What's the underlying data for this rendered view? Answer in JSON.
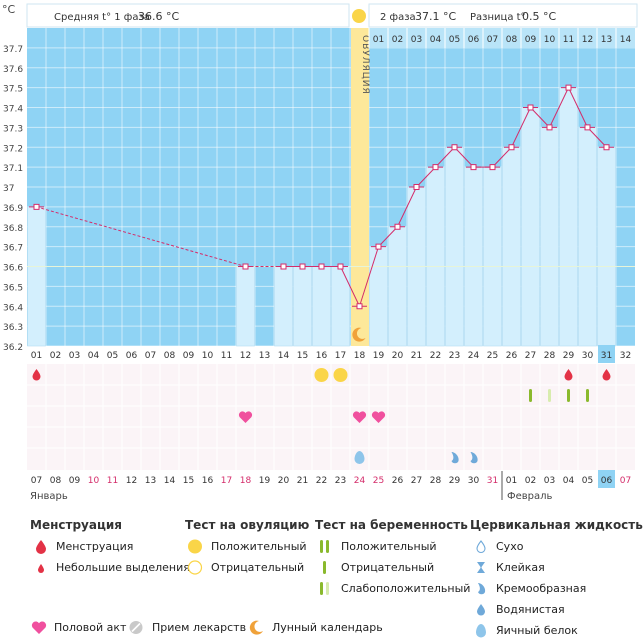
{
  "header": {
    "unit": "°C",
    "phase1_label": "Средняя t° 1 фаза",
    "phase1_value": "36.6 °C",
    "phase2_label": "2 фаза",
    "phase2_value": "37.1 °C",
    "diff_label": "Разница t°",
    "diff_value": "0.5 °C"
  },
  "ovulation_label": "ОВУЛЯЦИЯ",
  "phase2_days": [
    "01",
    "02",
    "03",
    "04",
    "05",
    "06",
    "07",
    "08",
    "09",
    "10",
    "11",
    "12",
    "13",
    "14"
  ],
  "months": {
    "first": "Январь",
    "second": "Февраль"
  },
  "colors": {
    "chart_bg": "#8fd3f4",
    "bar_fill": "#d3effd",
    "bar_stroke": "#b5ddf2",
    "line": "#d42c6a",
    "ovulation": "#fde89a",
    "sun": "#fad548",
    "grid": "#ffffff",
    "marks_bg": "#fbf4f7",
    "red_date": "#d42c6a",
    "highlight": "#8fd3f4"
  },
  "chart_data": {
    "type": "line",
    "y_unit": "°C",
    "ylim": [
      36.2,
      37.8
    ],
    "y_ticks": [
      "36.2",
      "36.3",
      "36.4",
      "36.5",
      "36.6",
      "36.7",
      "36.8",
      "36.9",
      "37",
      "37.1",
      "37.2",
      "37.3",
      "37.4",
      "37.5",
      "37.6",
      "37.7"
    ],
    "cycle_days": [
      "01",
      "02",
      "03",
      "04",
      "05",
      "06",
      "07",
      "08",
      "09",
      "10",
      "11",
      "12",
      "13",
      "14",
      "15",
      "16",
      "17",
      "18",
      "19",
      "20",
      "21",
      "22",
      "23",
      "24",
      "25",
      "26",
      "27",
      "28",
      "29",
      "30",
      "31",
      "32"
    ],
    "dates": [
      "07",
      "08",
      "09",
      "10",
      "11",
      "12",
      "13",
      "14",
      "15",
      "16",
      "17",
      "18",
      "19",
      "20",
      "21",
      "22",
      "23",
      "24",
      "25",
      "26",
      "27",
      "28",
      "29",
      "30",
      "31",
      "01",
      "02",
      "03",
      "04",
      "05",
      "06",
      "07"
    ],
    "red_date_indices": [
      3,
      4,
      10,
      11,
      17,
      18,
      24,
      31
    ],
    "highlighted_index": 30,
    "month_split_index": 25,
    "ovulation_day_index": 17,
    "coverline": 36.6,
    "temps": [
      36.9,
      null,
      null,
      null,
      null,
      null,
      null,
      null,
      null,
      null,
      null,
      36.6,
      null,
      36.6,
      36.6,
      36.6,
      36.6,
      36.4,
      36.7,
      36.8,
      37.0,
      37.1,
      37.2,
      37.1,
      37.1,
      37.2,
      37.4,
      37.3,
      37.5,
      37.3,
      37.2,
      null
    ],
    "markers": {
      "menstruation": [
        {
          "day": 0,
          "size": "large"
        },
        {
          "day": 28,
          "size": "large"
        },
        {
          "day": 30,
          "size": "large"
        }
      ],
      "ovulation_test_positive": [
        15,
        16
      ],
      "pregnancy_test": [
        {
          "day": 26,
          "kind": "positive"
        },
        {
          "day": 27,
          "kind": "weak"
        },
        {
          "day": 28,
          "kind": "positive"
        },
        {
          "day": 29,
          "kind": "negative"
        }
      ],
      "intercourse": [
        11,
        17,
        18
      ],
      "cervical_fluid": [
        {
          "day": 17,
          "kind": "egg-white"
        },
        {
          "day": 22,
          "kind": "watery"
        },
        {
          "day": 23,
          "kind": "watery"
        }
      ],
      "moon": [
        17
      ]
    }
  },
  "legend": {
    "menstruation": {
      "title": "Менструация",
      "items": [
        {
          "icon": "drop-large-icon",
          "label": "Менструация"
        },
        {
          "icon": "drop-small-icon",
          "label": "Небольшие выделения"
        }
      ]
    },
    "ovulation_test": {
      "title": "Тест на овуляцию",
      "items": [
        {
          "icon": "sun-filled-icon",
          "label": "Положительный"
        },
        {
          "icon": "sun-outline-icon",
          "label": "Отрицательный"
        }
      ]
    },
    "pregnancy_test": {
      "title": "Тест на беременность",
      "items": [
        {
          "icon": "double-bar-icon",
          "label": "Положительный"
        },
        {
          "icon": "single-bar-icon",
          "label": "Отрицательный"
        },
        {
          "icon": "faint-bar-icon",
          "label": "Слабоположительный"
        }
      ]
    },
    "cervical_fluid": {
      "title": "Цервикальная жидкость",
      "items": [
        {
          "icon": "dry-icon",
          "label": "Сухо"
        },
        {
          "icon": "sticky-icon",
          "label": "Клейкая"
        },
        {
          "icon": "creamy-icon",
          "label": "Кремообразная"
        },
        {
          "icon": "watery-icon",
          "label": "Водянистая"
        },
        {
          "icon": "egg-white-icon",
          "label": "Яичный белок"
        }
      ]
    },
    "bottom": [
      {
        "icon": "heart-icon",
        "label": "Половой акт"
      },
      {
        "icon": "pill-icon",
        "label": "Прием лекарств"
      },
      {
        "icon": "moon-icon",
        "label": "Лунный календарь"
      }
    ]
  }
}
